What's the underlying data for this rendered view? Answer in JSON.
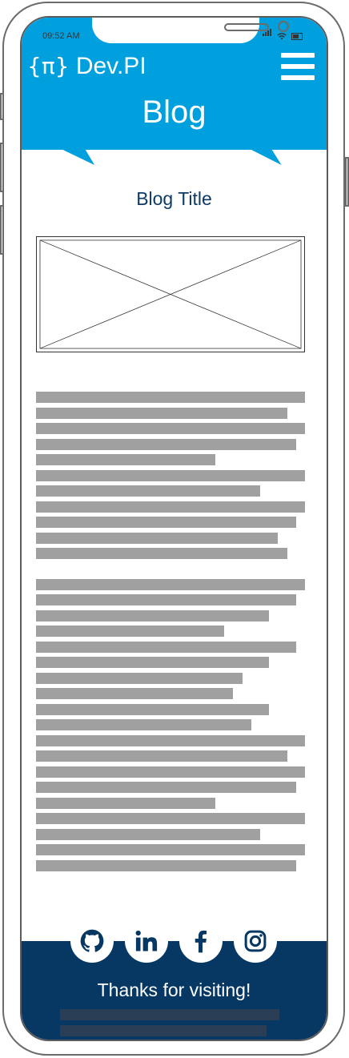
{
  "status_bar": {
    "time": "09:52 AM"
  },
  "header": {
    "logo_symbol": "{π}",
    "logo_text": " Dev.PI",
    "menu_icon": "hamburger-menu-icon",
    "page_title": "Blog",
    "background_color": "#00a0df"
  },
  "content": {
    "blog_title": "Blog Title",
    "image_placeholder": "image-placeholder-icon",
    "title_color": "#0d3b66"
  },
  "footer": {
    "background_color": "#073763",
    "social_links": [
      {
        "name": "GitHub",
        "icon": "github-icon"
      },
      {
        "name": "LinkedIn",
        "icon": "linkedin-icon"
      },
      {
        "name": "Facebook",
        "icon": "facebook-icon"
      },
      {
        "name": "Instagram",
        "icon": "instagram-icon"
      }
    ],
    "thanks_text": "Thanks for visiting!"
  }
}
